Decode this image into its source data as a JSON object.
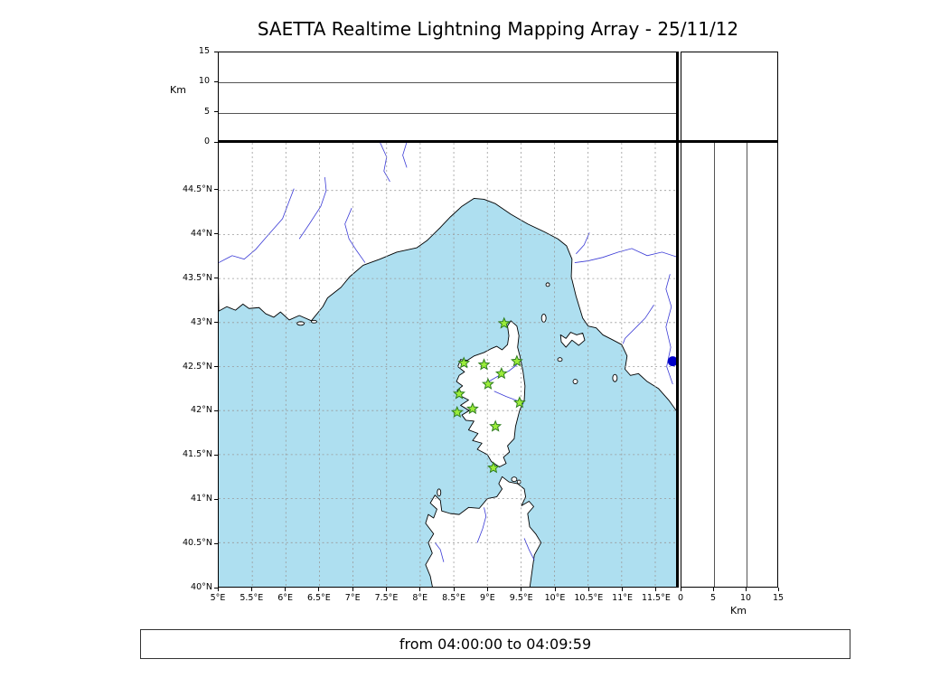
{
  "title": "SAETTA Realtime Lightning Mapping Array - 25/11/12",
  "footer": {
    "time_range": "from 04:00:00 to 04:09:59"
  },
  "axes": {
    "km_label_left": "Km",
    "km_label_bottom": "Km",
    "altitude_ticks": [
      "0",
      "5",
      "10",
      "15"
    ],
    "longitude_ticks": [
      "5°E",
      "5.5°E",
      "6°E",
      "6.5°E",
      "7°E",
      "7.5°E",
      "8°E",
      "8.5°E",
      "9°E",
      "9.5°E",
      "10°E",
      "10.5°E",
      "11°E",
      "11.5°E"
    ],
    "latitude_ticks": [
      "40°N",
      "40.5°N",
      "41°N",
      "41.5°N",
      "42°N",
      "42.5°N",
      "43°N",
      "43.5°N",
      "44°N",
      "44.5°N"
    ],
    "km_axis_ticks": [
      "0",
      "5",
      "10",
      "15"
    ]
  },
  "colors": {
    "sea": "#aedff0",
    "land": "#ffffff",
    "coast": "#000000",
    "river": "#3b3bd6",
    "grid": "#999999",
    "station_fill": "#9bec3a",
    "station_edge": "#2e7d1e",
    "event_dot": "#0000c8"
  },
  "chart_data": {
    "type": "scatter",
    "title": "SAETTA Realtime Lightning Mapping Array - 25/11/12",
    "time_window": "from 04:00:00 to 04:09:59",
    "layout": "XLMA-style panels: altitude-vs-longitude (top), plan-view map (center), altitude-vs-latitude (right)",
    "map_extent": {
      "lon": [
        5.0,
        11.82
      ],
      "lat": [
        40.0,
        45.04
      ]
    },
    "altitude_extent_km": [
      0,
      15
    ],
    "grid_step_deg": 0.5,
    "stations": [
      {
        "lon": 9.25,
        "lat": 42.99
      },
      {
        "lon": 8.65,
        "lat": 42.54
      },
      {
        "lon": 8.95,
        "lat": 42.52
      },
      {
        "lon": 9.44,
        "lat": 42.56
      },
      {
        "lon": 9.21,
        "lat": 42.42
      },
      {
        "lon": 9.01,
        "lat": 42.3
      },
      {
        "lon": 8.58,
        "lat": 42.19
      },
      {
        "lon": 8.55,
        "lat": 41.98
      },
      {
        "lon": 8.78,
        "lat": 42.02
      },
      {
        "lon": 9.48,
        "lat": 42.09
      },
      {
        "lon": 9.12,
        "lat": 41.82
      },
      {
        "lon": 9.09,
        "lat": 41.35
      }
    ],
    "events": [
      {
        "lon": 11.76,
        "lat": 42.56,
        "marker": "circle",
        "color": "#0000c8"
      }
    ],
    "panel_points": {
      "alt_vs_lon": [],
      "alt_vs_lat": []
    }
  }
}
